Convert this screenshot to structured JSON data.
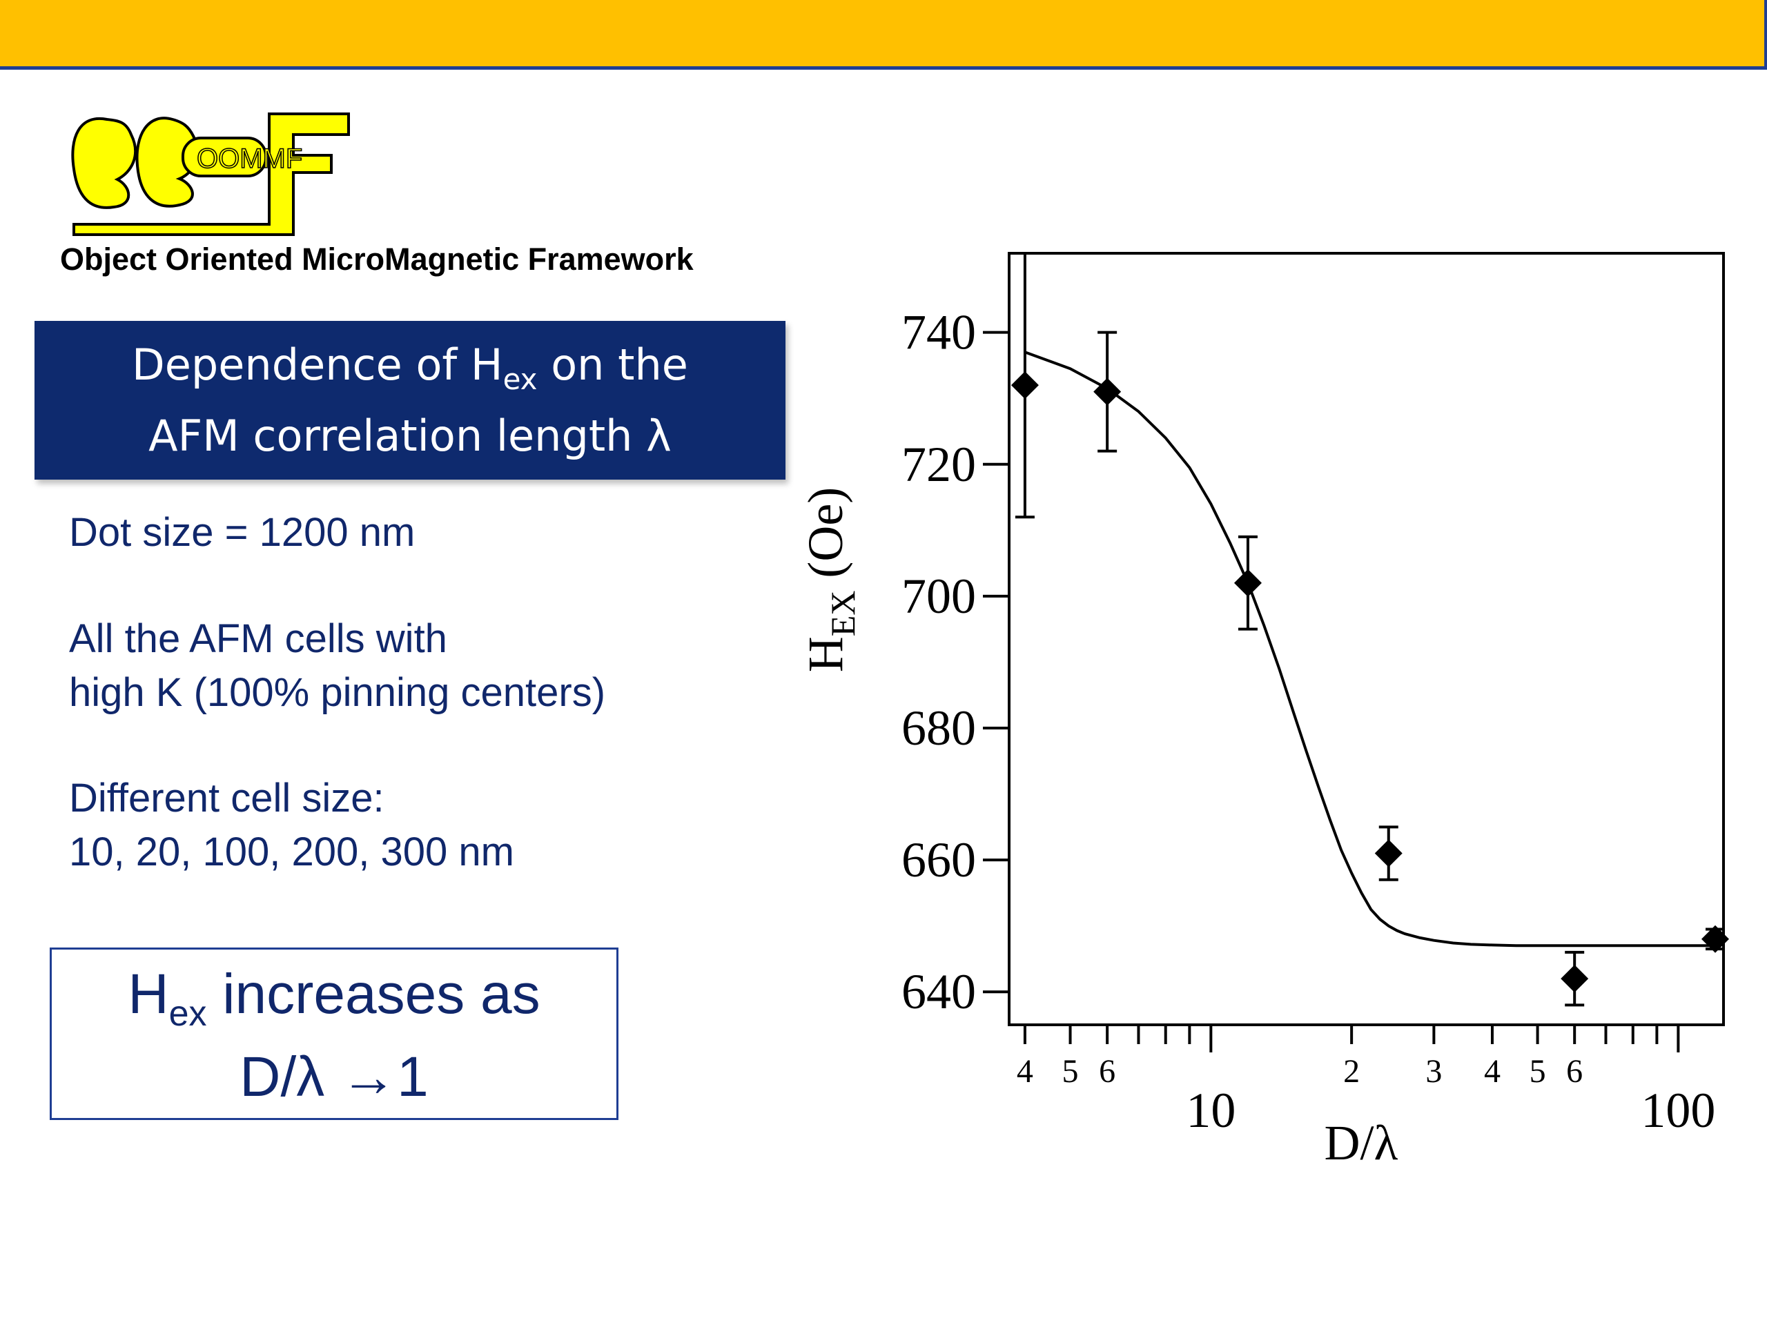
{
  "header": {
    "bar_color": "#FFC000",
    "border_color": "#1F3E93"
  },
  "logo": {
    "text": "OOMMF",
    "tagline": "Object Oriented MicroMagnetic Framework",
    "color": "#FFFF00"
  },
  "title": {
    "line1_pre": "Dependence of H",
    "line1_sub": "ex",
    "line1_post": " on the",
    "line2": "AFM correlation length λ"
  },
  "body": {
    "dot_size": "Dot size = 1200 nm",
    "cells_line1": "All the AFM cells with",
    "cells_line2": "high K (100% pinning centers)",
    "cellsize_line1": "Different cell size:",
    "cellsize_line2": "10, 20, 100, 200, 300 nm"
  },
  "conclusion": {
    "line1_pre": "H",
    "line1_sub": "ex",
    "line1_post": " increases as",
    "line2": "D/λ →1"
  },
  "chart_data": {
    "type": "scatter",
    "xlabel": "D/λ",
    "ylabel_main": "H",
    "ylabel_sub": "EX",
    "ylabel_unit": "(Oe)",
    "x_scale": "log",
    "xlim": [
      3.7,
      125
    ],
    "ylim": [
      635,
      752
    ],
    "y_ticks": [
      640,
      660,
      680,
      700,
      720,
      740
    ],
    "x_major_ticks": [
      {
        "value": 10,
        "label": "10"
      },
      {
        "value": 100,
        "label": "100"
      }
    ],
    "x_minor_labels": [
      {
        "value": 4,
        "label": "4"
      },
      {
        "value": 5,
        "label": "5"
      },
      {
        "value": 6,
        "label": "6"
      },
      {
        "value": 20,
        "label": "2"
      },
      {
        "value": 30,
        "label": "3"
      },
      {
        "value": 40,
        "label": "4"
      },
      {
        "value": 50,
        "label": "5"
      },
      {
        "value": 60,
        "label": "6"
      }
    ],
    "x_minor_ticks": [
      4,
      5,
      6,
      7,
      8,
      9,
      20,
      30,
      40,
      50,
      60,
      70,
      80,
      90
    ],
    "points": [
      {
        "x": 4,
        "y": 732,
        "err": 20
      },
      {
        "x": 6,
        "y": 731,
        "err": 9
      },
      {
        "x": 12,
        "y": 702,
        "err": 7
      },
      {
        "x": 24,
        "y": 661,
        "err": 4
      },
      {
        "x": 60,
        "y": 642,
        "err": 4
      },
      {
        "x": 120,
        "y": 648,
        "err": 1.5
      }
    ],
    "fit_curve": {
      "x": [
        4,
        5,
        6,
        7,
        8,
        9,
        10,
        11,
        12,
        13,
        14,
        15,
        16,
        17,
        18,
        19,
        20,
        21,
        22,
        23,
        24,
        25,
        26,
        28,
        30,
        33,
        36,
        40,
        45,
        50,
        60,
        80,
        100,
        120
      ],
      "y": [
        737,
        734.5,
        731.5,
        728,
        724,
        719.5,
        714,
        708,
        702,
        695.5,
        689,
        682.5,
        676.5,
        671,
        666,
        661.5,
        658,
        655,
        652.5,
        651,
        650,
        649.3,
        648.8,
        648.2,
        647.8,
        647.4,
        647.2,
        647.1,
        647,
        647,
        647,
        647,
        647,
        647
      ]
    },
    "grid": false,
    "legend": "none"
  }
}
